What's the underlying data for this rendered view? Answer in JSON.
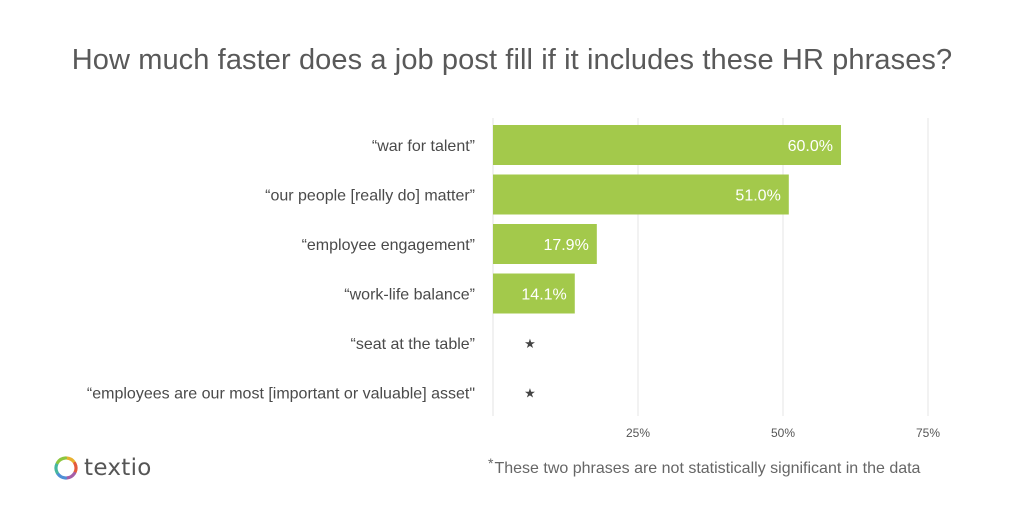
{
  "title": "How much faster does a job post fill if it includes these HR phrases?",
  "footnote": {
    "marker": "*",
    "text": "These two phrases are not statistically significant in the data"
  },
  "logo": {
    "name": "textio",
    "ring_colors": [
      "#e8b130",
      "#e55a3c",
      "#a55fa8",
      "#4f8fd6",
      "#46b6a0",
      "#8cc63f"
    ]
  },
  "chart_data": {
    "type": "bar",
    "orientation": "horizontal",
    "categories": [
      "“war for talent”",
      "“our people [really do] matter”",
      "“employee engagement”",
      "“work-life balance”",
      "“seat at the table”",
      "“employees are our most [important or valuable] asset\""
    ],
    "values": [
      60.0,
      51.0,
      17.9,
      14.1,
      null,
      null
    ],
    "value_labels": [
      "60.0%",
      "51.0%",
      "17.9%",
      "14.1%",
      "★",
      "★"
    ],
    "x_ticks": [
      25,
      50,
      75
    ],
    "x_tick_labels": [
      "25%",
      "50%",
      "75%"
    ],
    "xlim": [
      0,
      75
    ],
    "bar_color": "#a3c94b",
    "grid": true,
    "xlabel": "",
    "ylabel": ""
  }
}
